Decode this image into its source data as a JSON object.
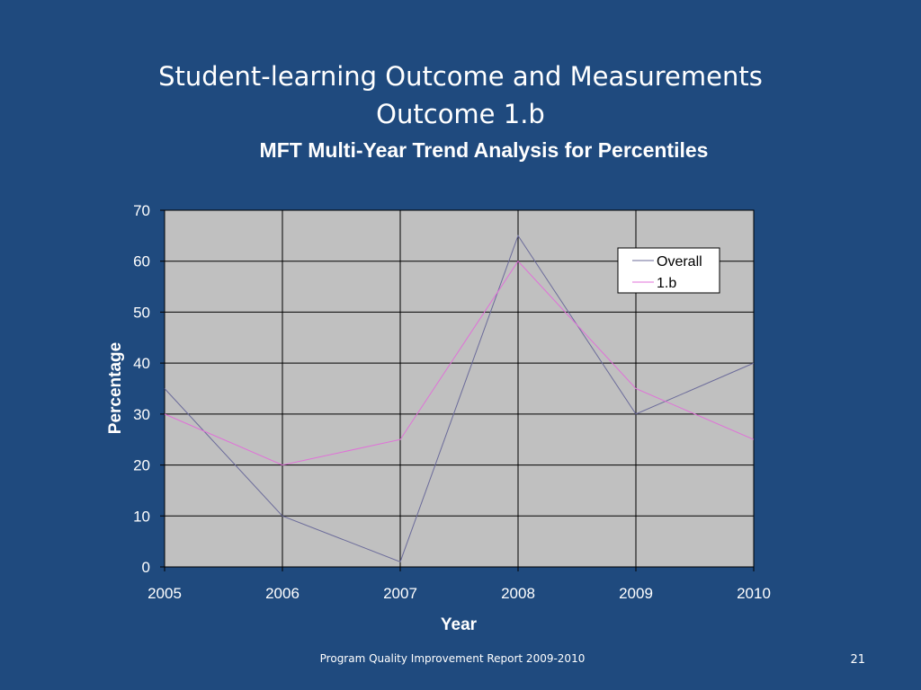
{
  "slide": {
    "title_line1": "Student-learning Outcome and Measurements",
    "title_line2": "Outcome 1.b",
    "footer": "Program Quality Improvement Report 2009-2010",
    "page_number": "21"
  },
  "chart_data": {
    "type": "line",
    "title": "MFT Multi-Year Trend Analysis for Percentiles",
    "xlabel": "Year",
    "ylabel": "Percentage",
    "x": [
      "2005",
      "2006",
      "2007",
      "2008",
      "2009",
      "2010"
    ],
    "yticks": [
      "0",
      "10",
      "20",
      "30",
      "40",
      "50",
      "60",
      "70"
    ],
    "ylim": [
      0,
      70
    ],
    "grid": true,
    "legend": "top-right",
    "plot_background": "#c0c0c0",
    "series": [
      {
        "name": "Overall",
        "values": [
          35,
          10,
          1,
          65,
          30,
          40
        ],
        "color": "#6b6b9a"
      },
      {
        "name": "1.b",
        "values": [
          30,
          20,
          25,
          60,
          35,
          25
        ],
        "color": "#e070d8"
      }
    ]
  }
}
